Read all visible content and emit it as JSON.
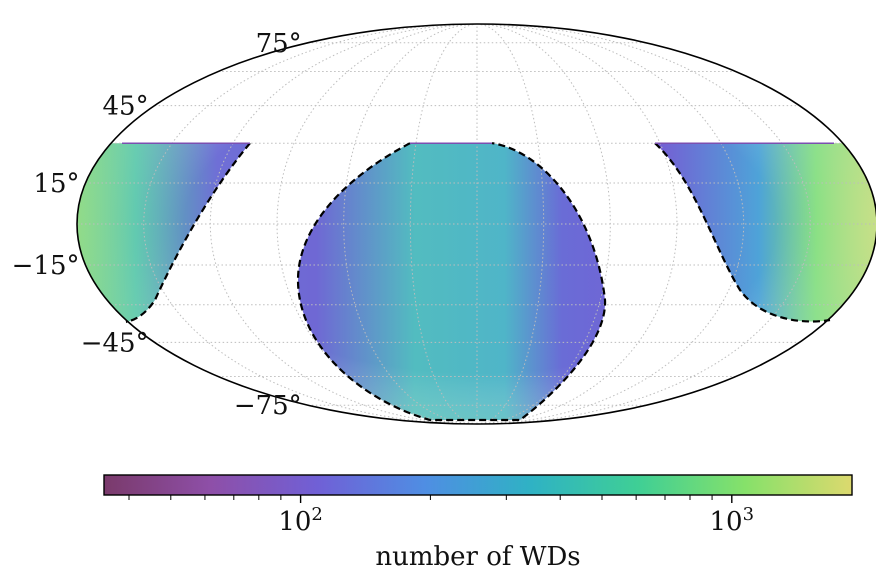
{
  "chart_data": {
    "type": "heatmap",
    "projection": "mollweide",
    "title": "",
    "grid": true,
    "lat_ticks": [
      {
        "value": 75,
        "label": "75°"
      },
      {
        "value": 45,
        "label": "45°"
      },
      {
        "value": 15,
        "label": "15°"
      },
      {
        "value": -15,
        "label": "−15°"
      },
      {
        "value": -45,
        "label": "−45°"
      },
      {
        "value": -75,
        "label": "−75°"
      }
    ],
    "footprint": {
      "dec_range": [
        -85,
        30
      ],
      "galactic_plane_excluded": true
    },
    "colorbar": {
      "label": "number of WDs",
      "scale": "log",
      "range": [
        35,
        1900
      ],
      "ticks": [
        {
          "value": 100,
          "base": "10",
          "exp": "2"
        },
        {
          "value": 1000,
          "base": "10",
          "exp": "3"
        }
      ],
      "colormap": [
        "#7a3a6b",
        "#8e4fa8",
        "#7060d6",
        "#4f8ee3",
        "#2fb2c4",
        "#3fcf95",
        "#86e16a",
        "#dcd96e"
      ]
    }
  }
}
